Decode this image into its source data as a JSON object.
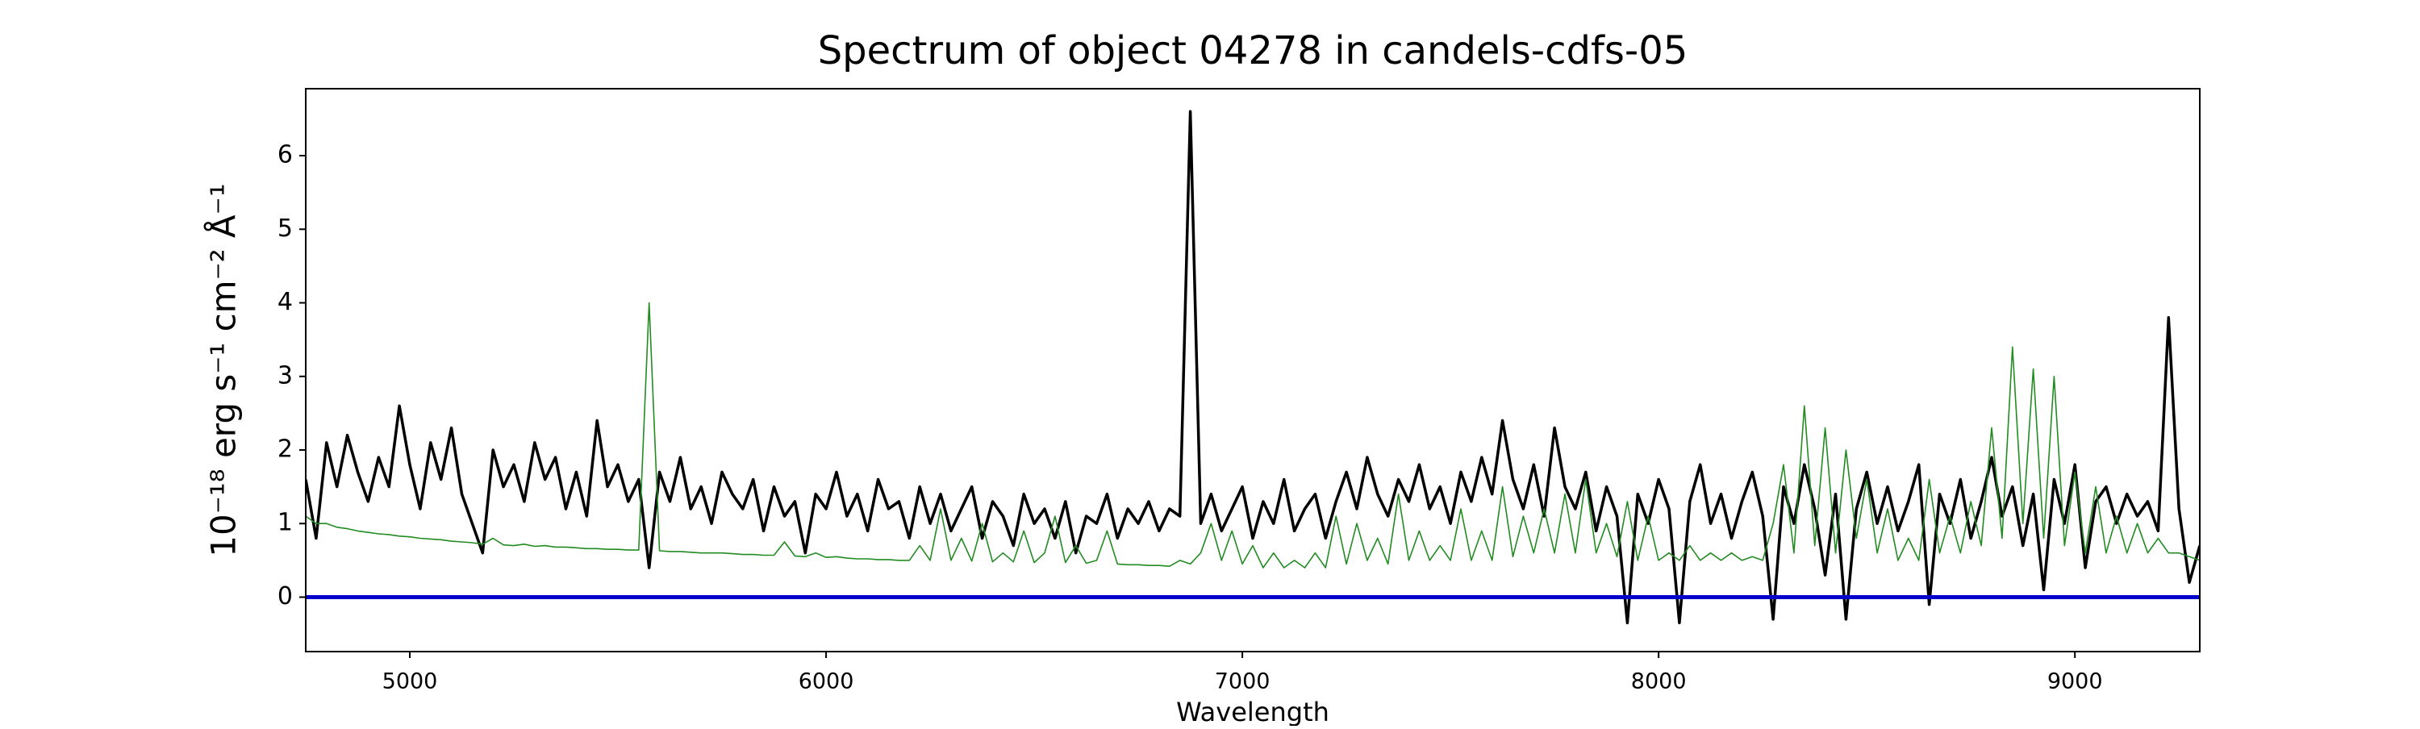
{
  "chart_data": {
    "type": "line",
    "title": "Spectrum of object 04278 in candels-cdfs-05",
    "x_label": "Wavelength",
    "y_label": "10⁻¹⁸ erg s⁻¹ cm⁻² Å⁻¹",
    "xlim": [
      4750,
      9300
    ],
    "ylim": [
      -0.74,
      6.91
    ],
    "xticks": [
      5000,
      6000,
      7000,
      8000,
      9000
    ],
    "yticks": [
      0,
      1,
      2,
      3,
      4,
      5,
      6
    ],
    "reference_line": {
      "value": 0,
      "color": "#0000cc"
    },
    "x": [
      4750,
      4775,
      4800,
      4825,
      4850,
      4875,
      4900,
      4925,
      4950,
      4975,
      5000,
      5025,
      5050,
      5075,
      5100,
      5125,
      5150,
      5175,
      5200,
      5225,
      5250,
      5275,
      5300,
      5325,
      5350,
      5375,
      5400,
      5425,
      5450,
      5475,
      5500,
      5525,
      5550,
      5575,
      5600,
      5625,
      5650,
      5675,
      5700,
      5725,
      5750,
      5775,
      5800,
      5825,
      5850,
      5875,
      5900,
      5925,
      5950,
      5975,
      6000,
      6025,
      6050,
      6075,
      6100,
      6125,
      6150,
      6175,
      6200,
      6225,
      6250,
      6275,
      6300,
      6325,
      6350,
      6375,
      6400,
      6425,
      6450,
      6475,
      6500,
      6525,
      6550,
      6575,
      6600,
      6625,
      6650,
      6675,
      6700,
      6725,
      6750,
      6775,
      6800,
      6825,
      6850,
      6875,
      6900,
      6925,
      6950,
      6975,
      7000,
      7025,
      7050,
      7075,
      7100,
      7125,
      7150,
      7175,
      7200,
      7225,
      7250,
      7275,
      7300,
      7325,
      7350,
      7375,
      7400,
      7425,
      7450,
      7475,
      7500,
      7525,
      7550,
      7575,
      7600,
      7625,
      7650,
      7675,
      7700,
      7725,
      7750,
      7775,
      7800,
      7825,
      7850,
      7875,
      7900,
      7925,
      7950,
      7975,
      8000,
      8025,
      8050,
      8075,
      8100,
      8125,
      8150,
      8175,
      8200,
      8225,
      8250,
      8275,
      8300,
      8325,
      8350,
      8375,
      8400,
      8425,
      8450,
      8475,
      8500,
      8525,
      8550,
      8575,
      8600,
      8625,
      8650,
      8675,
      8700,
      8725,
      8750,
      8775,
      8800,
      8825,
      8850,
      8875,
      8900,
      8925,
      8950,
      8975,
      9000,
      9025,
      9050,
      9075,
      9100,
      9125,
      9150,
      9175,
      9200,
      9225,
      9250,
      9275,
      9300
    ],
    "series": [
      {
        "color": "#000000",
        "width": 3.5,
        "values": [
          1.6,
          0.8,
          2.1,
          1.5,
          2.2,
          1.7,
          1.3,
          1.9,
          1.5,
          2.6,
          1.8,
          1.2,
          2.1,
          1.6,
          2.3,
          1.4,
          1.0,
          0.6,
          2.0,
          1.5,
          1.8,
          1.3,
          2.1,
          1.6,
          1.9,
          1.2,
          1.7,
          1.1,
          2.4,
          1.5,
          1.8,
          1.3,
          1.6,
          0.4,
          1.7,
          1.3,
          1.9,
          1.2,
          1.5,
          1.0,
          1.7,
          1.4,
          1.2,
          1.6,
          0.9,
          1.5,
          1.1,
          1.3,
          0.6,
          1.4,
          1.2,
          1.7,
          1.1,
          1.4,
          0.9,
          1.6,
          1.2,
          1.3,
          0.8,
          1.5,
          1.0,
          1.4,
          0.9,
          1.2,
          1.5,
          0.8,
          1.3,
          1.1,
          0.7,
          1.4,
          1.0,
          1.2,
          0.8,
          1.3,
          0.6,
          1.1,
          1.0,
          1.4,
          0.8,
          1.2,
          1.0,
          1.3,
          0.9,
          1.2,
          1.1,
          6.6,
          1.0,
          1.4,
          0.9,
          1.2,
          1.5,
          0.8,
          1.3,
          1.0,
          1.6,
          0.9,
          1.2,
          1.4,
          0.8,
          1.3,
          1.7,
          1.2,
          1.9,
          1.4,
          1.1,
          1.6,
          1.3,
          1.8,
          1.2,
          1.5,
          1.0,
          1.7,
          1.3,
          1.9,
          1.4,
          2.4,
          1.6,
          1.2,
          1.8,
          1.1,
          2.3,
          1.5,
          1.2,
          1.7,
          0.9,
          1.5,
          1.1,
          -0.35,
          1.4,
          1.0,
          1.6,
          1.2,
          -0.35,
          1.3,
          1.8,
          1.0,
          1.4,
          0.8,
          1.3,
          1.7,
          1.1,
          -0.3,
          1.5,
          1.0,
          1.8,
          1.2,
          0.3,
          1.4,
          -0.3,
          1.2,
          1.7,
          1.0,
          1.5,
          0.9,
          1.3,
          1.8,
          -0.1,
          1.4,
          1.0,
          1.6,
          0.8,
          1.3,
          1.9,
          1.1,
          1.5,
          0.7,
          1.4,
          0.1,
          1.6,
          1.0,
          1.8,
          0.4,
          1.3,
          1.5,
          1.0,
          1.4,
          1.1,
          1.3,
          0.9,
          3.8,
          1.2,
          0.2,
          0.7
        ]
      },
      {
        "color": "#228b22",
        "width": 1.6,
        "values": [
          1.1,
          1.0,
          1.0,
          0.95,
          0.93,
          0.9,
          0.88,
          0.86,
          0.85,
          0.83,
          0.82,
          0.8,
          0.79,
          0.78,
          0.76,
          0.75,
          0.74,
          0.72,
          0.8,
          0.71,
          0.7,
          0.72,
          0.69,
          0.7,
          0.68,
          0.68,
          0.67,
          0.66,
          0.66,
          0.65,
          0.65,
          0.64,
          0.64,
          4.0,
          0.63,
          0.62,
          0.62,
          0.61,
          0.6,
          0.6,
          0.6,
          0.59,
          0.58,
          0.58,
          0.57,
          0.57,
          0.75,
          0.56,
          0.55,
          0.6,
          0.54,
          0.55,
          0.53,
          0.52,
          0.52,
          0.51,
          0.51,
          0.5,
          0.5,
          0.7,
          0.5,
          1.2,
          0.5,
          0.8,
          0.49,
          1.0,
          0.48,
          0.6,
          0.48,
          0.9,
          0.47,
          0.6,
          1.1,
          0.47,
          0.7,
          0.46,
          0.5,
          0.9,
          0.45,
          0.44,
          0.44,
          0.43,
          0.43,
          0.42,
          0.5,
          0.45,
          0.6,
          1.0,
          0.5,
          0.9,
          0.45,
          0.7,
          0.4,
          0.6,
          0.4,
          0.5,
          0.4,
          0.6,
          0.4,
          1.1,
          0.45,
          1.0,
          0.5,
          0.8,
          0.45,
          1.4,
          0.5,
          0.9,
          0.5,
          0.7,
          0.5,
          1.2,
          0.5,
          0.9,
          0.5,
          1.5,
          0.55,
          1.1,
          0.6,
          1.2,
          0.6,
          1.4,
          0.6,
          1.6,
          0.6,
          1.0,
          0.55,
          1.3,
          0.5,
          1.1,
          0.5,
          0.6,
          0.5,
          0.7,
          0.5,
          0.6,
          0.5,
          0.6,
          0.5,
          0.55,
          0.5,
          1.0,
          1.8,
          0.6,
          2.6,
          0.7,
          2.3,
          0.6,
          2.0,
          0.8,
          1.6,
          0.6,
          1.2,
          0.5,
          0.8,
          0.5,
          1.6,
          0.6,
          1.1,
          0.6,
          1.3,
          0.7,
          2.3,
          0.8,
          3.4,
          1.0,
          3.1,
          0.8,
          3.0,
          0.7,
          1.7,
          0.6,
          1.5,
          0.6,
          1.1,
          0.6,
          1.0,
          0.6,
          0.8,
          0.6,
          0.6,
          0.55,
          0.5
        ]
      }
    ]
  }
}
